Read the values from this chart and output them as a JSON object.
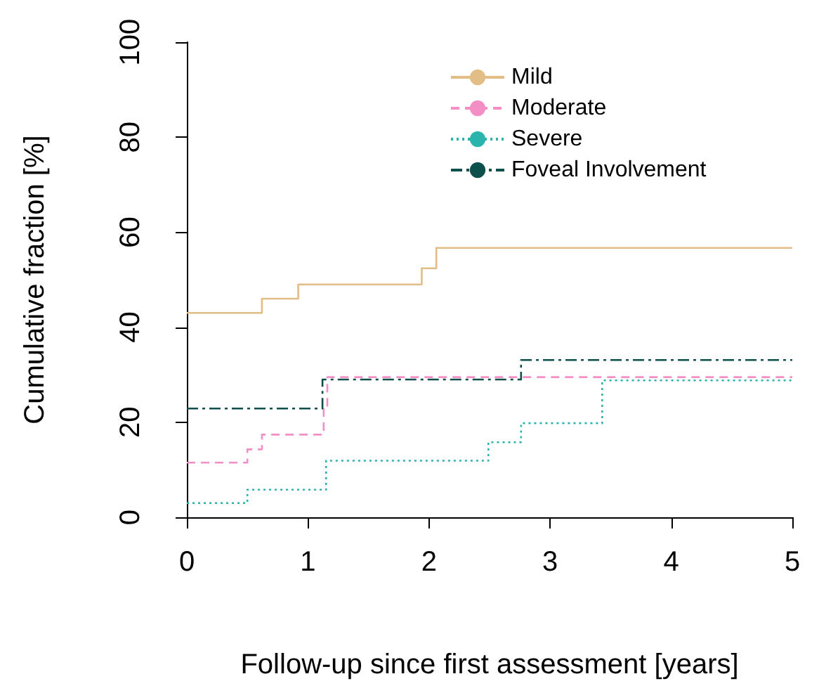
{
  "chart_data": {
    "type": "step",
    "xlabel": "Follow-up since first assessment [years]",
    "ylabel": "Cumulative fraction [%]",
    "xlim": [
      0,
      5
    ],
    "ylim": [
      0,
      100
    ],
    "xticks": [
      0,
      1,
      2,
      3,
      4,
      5
    ],
    "yticks": [
      0,
      20,
      40,
      60,
      80,
      100
    ],
    "grid": false,
    "legend": "top right",
    "marker": "none",
    "series": [
      {
        "name": "Mild",
        "color": "#e2bd86",
        "line_style": "solid",
        "x": [
          0,
          0.62,
          0.92,
          1.94,
          2.06,
          5
        ],
        "values": [
          43,
          46,
          49,
          52.4,
          56.7,
          56.7
        ]
      },
      {
        "name": "Moderate",
        "color": "#f38fc4",
        "line_style": "dashed",
        "x": [
          0,
          0.5,
          0.62,
          1.13,
          1.16,
          5
        ],
        "values": [
          11.5,
          14.3,
          17.4,
          23.4,
          29.5,
          29.5
        ]
      },
      {
        "name": "Severe",
        "color": "#2bb3ad",
        "line_style": "dotted",
        "x": [
          0,
          0.5,
          1.15,
          2.49,
          2.76,
          3.43,
          5
        ],
        "values": [
          3,
          5.8,
          11.9,
          15.8,
          19.8,
          28.8,
          28.8
        ]
      },
      {
        "name": "Foveal Involvement",
        "color": "#0d4f4b",
        "line_style": "dashdot",
        "x": [
          0,
          1.12,
          2.76,
          5
        ],
        "values": [
          22.9,
          29,
          33.1,
          33.1
        ]
      }
    ]
  }
}
